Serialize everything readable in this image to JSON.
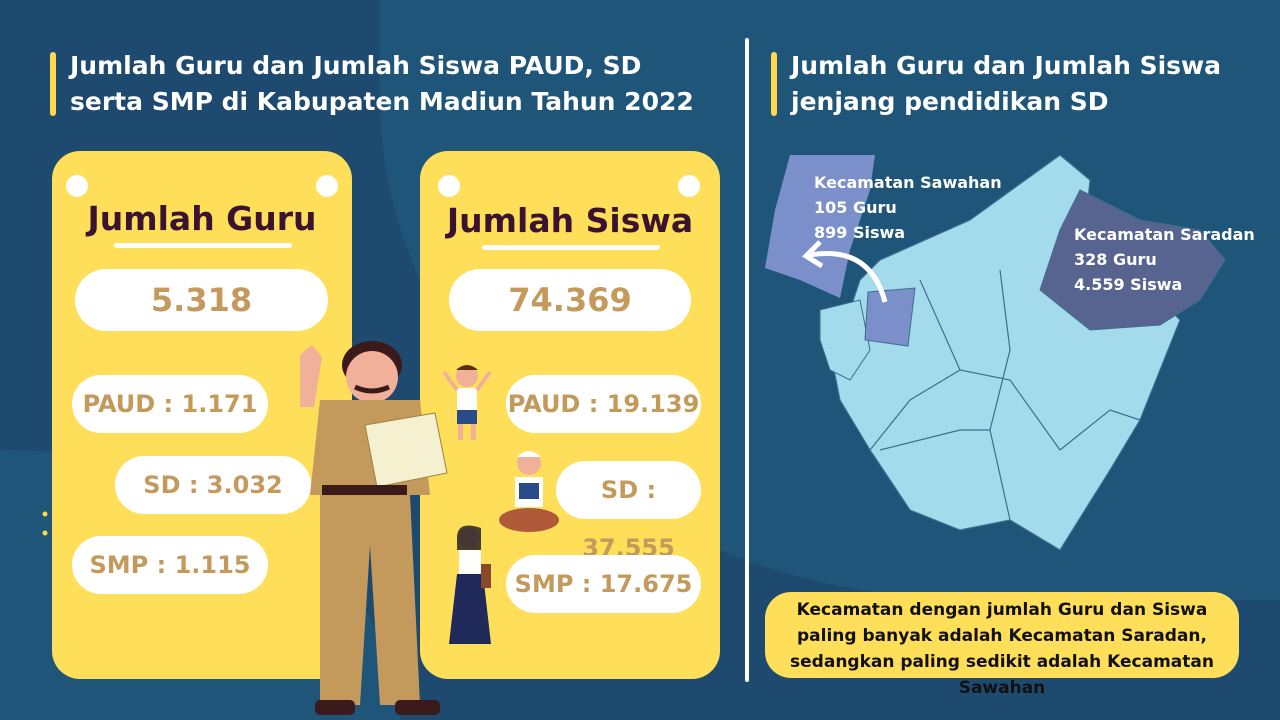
{
  "left_title": "Jumlah Guru dan Jumlah Siswa PAUD, SD serta SMP di Kabupaten Madiun Tahun 2022",
  "guru": {
    "title": "Jumlah Guru",
    "total": "5.318",
    "paud": "PAUD : 1.171",
    "sd": "SD : 3.032",
    "smp": "SMP : 1.115"
  },
  "siswa": {
    "title": "Jumlah Siswa",
    "total": "74.369",
    "paud": "PAUD : 19.139",
    "sd": "SD : 37.555",
    "smp": "SMP : 17.675"
  },
  "right_title": "Jumlah Guru dan Jumlah Siswa jenjang pendidikan SD",
  "map": {
    "sawahan": {
      "name": "Kecamatan Sawahan",
      "guru": "105 Guru",
      "siswa": "899 Siswa"
    },
    "saradan": {
      "name": "Kecamatan Saradan",
      "guru": "328 Guru",
      "siswa": "4.559 Siswa"
    },
    "colors": {
      "base": "#a3dbec",
      "sawahan": "#7b8fca",
      "saradan": "#57648f"
    }
  },
  "note": "Kecamatan dengan jumlah Guru dan Siswa paling banyak adalah Kecamatan Saradan, sedangkan paling sedikit adalah Kecamatan Sawahan"
}
